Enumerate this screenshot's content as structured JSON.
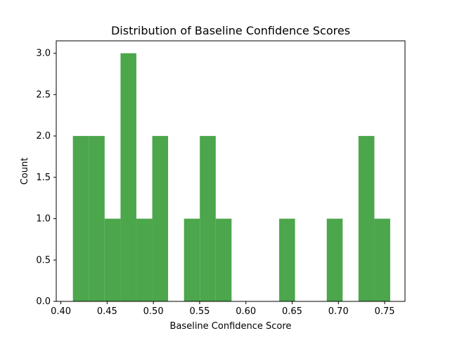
{
  "chart_data": {
    "type": "bar",
    "title": "Distribution of Baseline Confidence Scores",
    "xlabel": "Baseline Confidence Score",
    "ylabel": "Count",
    "xlim": [
      0.395,
      0.772
    ],
    "ylim": [
      0,
      3.15
    ],
    "bar_color": "#4ca64c",
    "grid": false,
    "legend": "none",
    "x_ticks": [
      0.4,
      0.45,
      0.5,
      0.55,
      0.6,
      0.65,
      0.7,
      0.75
    ],
    "x_tick_labels": [
      "0.40",
      "0.45",
      "0.50",
      "0.55",
      "0.60",
      "0.65",
      "0.70",
      "0.75"
    ],
    "y_ticks": [
      0.0,
      0.5,
      1.0,
      1.5,
      2.0,
      2.5,
      3.0
    ],
    "y_tick_labels": [
      "0.0",
      "0.5",
      "1.0",
      "1.5",
      "2.0",
      "2.5",
      "3.0"
    ],
    "bins": [
      {
        "start": 0.413,
        "end": 0.4302,
        "count": 2
      },
      {
        "start": 0.4302,
        "end": 0.4473,
        "count": 2
      },
      {
        "start": 0.4473,
        "end": 0.4645,
        "count": 1
      },
      {
        "start": 0.4645,
        "end": 0.4816,
        "count": 3
      },
      {
        "start": 0.4816,
        "end": 0.4988,
        "count": 1
      },
      {
        "start": 0.4988,
        "end": 0.5159,
        "count": 2
      },
      {
        "start": 0.5159,
        "end": 0.5331,
        "count": 0
      },
      {
        "start": 0.5331,
        "end": 0.5502,
        "count": 1
      },
      {
        "start": 0.5502,
        "end": 0.5674,
        "count": 2
      },
      {
        "start": 0.5674,
        "end": 0.5845,
        "count": 1
      },
      {
        "start": 0.5845,
        "end": 0.6017,
        "count": 0
      },
      {
        "start": 0.6017,
        "end": 0.6188,
        "count": 0
      },
      {
        "start": 0.6188,
        "end": 0.636,
        "count": 0
      },
      {
        "start": 0.636,
        "end": 0.6531,
        "count": 1
      },
      {
        "start": 0.6531,
        "end": 0.6703,
        "count": 0
      },
      {
        "start": 0.6703,
        "end": 0.6874,
        "count": 0
      },
      {
        "start": 0.6874,
        "end": 0.7046,
        "count": 1
      },
      {
        "start": 0.7046,
        "end": 0.7217,
        "count": 0
      },
      {
        "start": 0.7217,
        "end": 0.7389,
        "count": 2
      },
      {
        "start": 0.7389,
        "end": 0.756,
        "count": 1
      }
    ]
  }
}
